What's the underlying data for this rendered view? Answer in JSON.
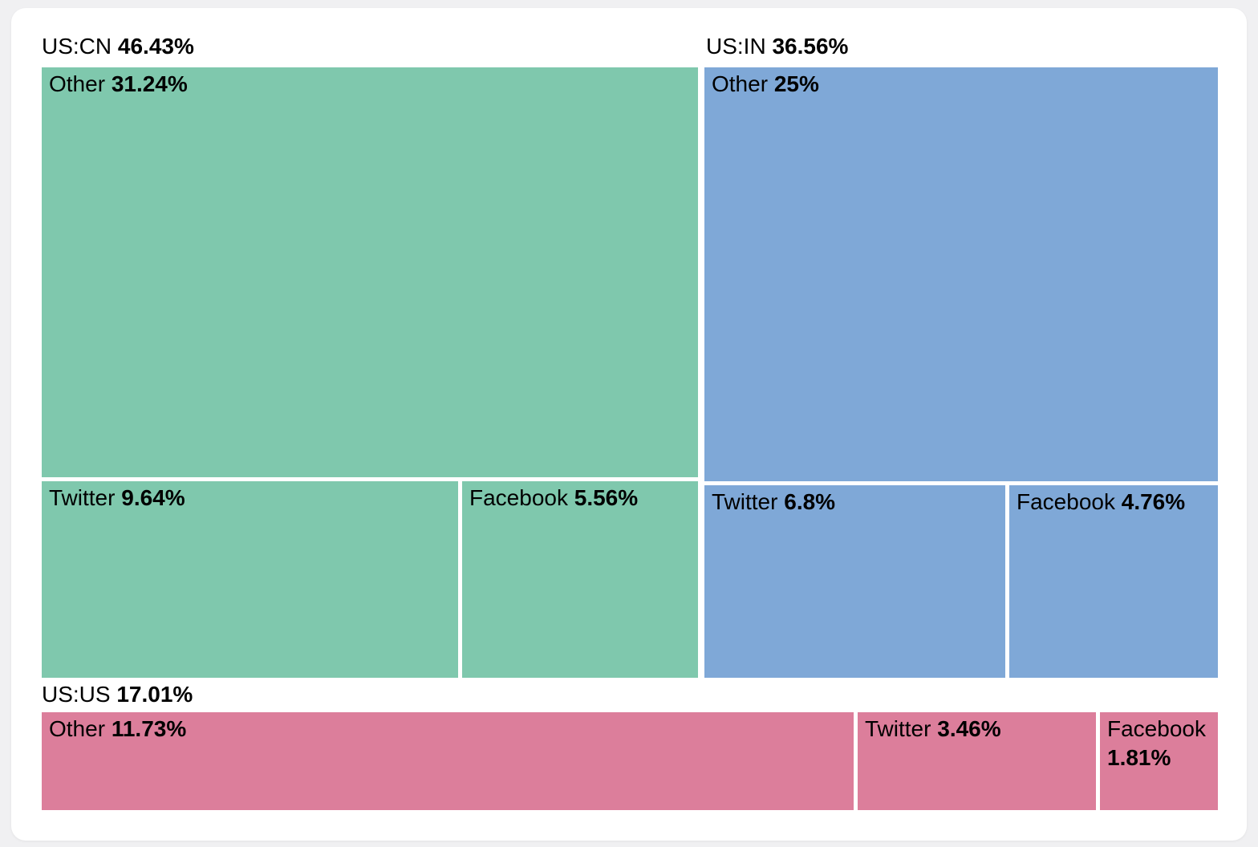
{
  "page": {
    "background_color": "#f0f0f2",
    "card_color": "#ffffff",
    "text_color": "#000000"
  },
  "chart_data": {
    "type": "treemap",
    "legend": "none",
    "label_format": "name plain, percentage bold",
    "groups": [
      {
        "label": "US:CN",
        "value_label": "46.43%",
        "value": 46.43,
        "color": "#7fc8ad",
        "children": [
          {
            "label": "Other",
            "value_label": "31.24%",
            "value": 31.24
          },
          {
            "label": "Twitter",
            "value_label": "9.64%",
            "value": 9.64
          },
          {
            "label": "Facebook",
            "value_label": "5.56%",
            "value": 5.56
          }
        ]
      },
      {
        "label": "US:IN",
        "value_label": "36.56%",
        "value": 36.56,
        "color": "#7fa8d7",
        "children": [
          {
            "label": "Other",
            "value_label": "25%",
            "value": 25
          },
          {
            "label": "Twitter",
            "value_label": "6.8%",
            "value": 6.8
          },
          {
            "label": "Facebook",
            "value_label": "4.76%",
            "value": 4.76
          }
        ]
      },
      {
        "label": "US:US",
        "value_label": "17.01%",
        "value": 17.01,
        "color": "#dc7e9b",
        "children": [
          {
            "label": "Other",
            "value_label": "11.73%",
            "value": 11.73
          },
          {
            "label": "Twitter",
            "value_label": "3.46%",
            "value": 3.46
          },
          {
            "label": "Facebook",
            "value_label": "1.81%",
            "value": 1.81
          }
        ]
      }
    ]
  }
}
